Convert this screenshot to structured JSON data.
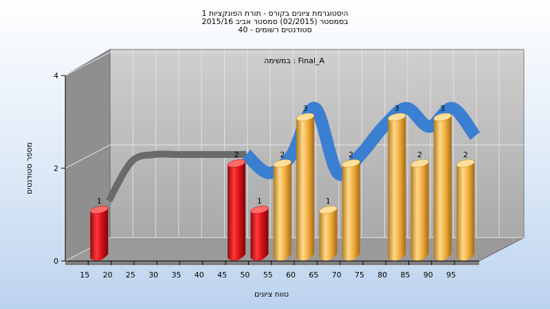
{
  "chart_data": {
    "type": "bar",
    "title_lines": [
      "היסטוגרמת ציונים בקורס - תורת הפונקציות 1",
      "בסמסטר  (02/2015)  סמסטר אביב 2015/16",
      "סטודנטים רשומים - 40"
    ],
    "subtitle": "במשימה : Final_A",
    "xlabel": "טווח ציונים",
    "ylabel": "מספר סטודנטים",
    "ylim": [
      0,
      4
    ],
    "yticks": [
      0,
      2,
      4
    ],
    "categories": [
      "15",
      "20",
      "25",
      "30",
      "35",
      "40",
      "45",
      "50",
      "55",
      "60",
      "65",
      "70",
      "75",
      "80",
      "85",
      "90",
      "95"
    ],
    "values": [
      1,
      null,
      null,
      null,
      null,
      null,
      2,
      1,
      2,
      3,
      1,
      2,
      null,
      3,
      2,
      3,
      2
    ],
    "bar_colors": [
      "red",
      null,
      null,
      null,
      null,
      null,
      "red",
      "red",
      "orange",
      "orange",
      "orange",
      "orange",
      null,
      "orange",
      "orange",
      "orange",
      "orange"
    ],
    "colors": {
      "red": "#e0141b",
      "orange": "#f2b447",
      "ribbon_blue": "#3a7fd1",
      "ribbon_gray": "#6a6a6a"
    }
  }
}
